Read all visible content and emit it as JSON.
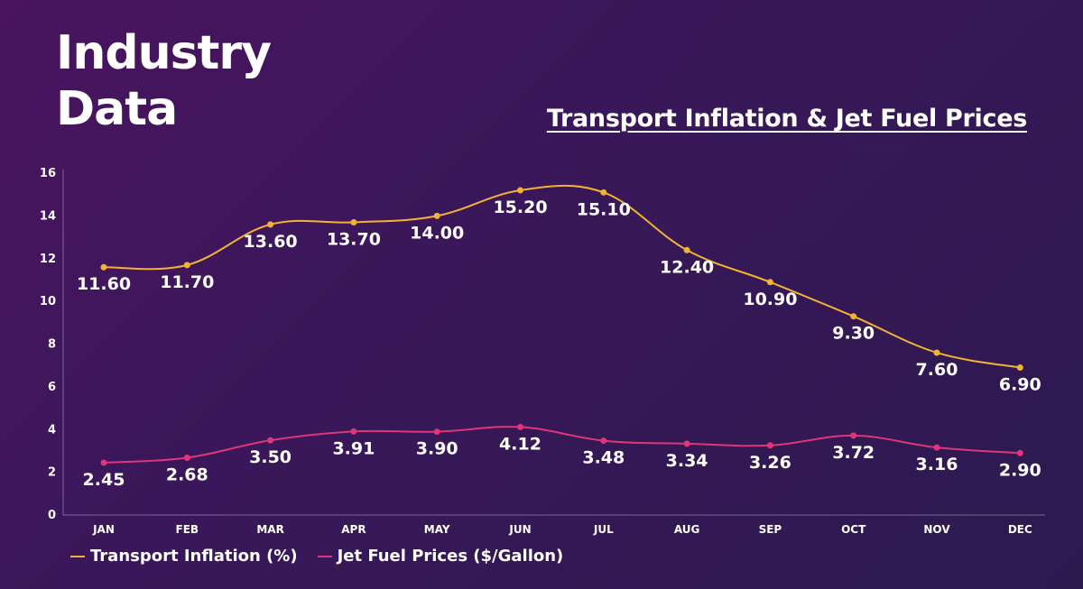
{
  "page": {
    "title": "Industry Data"
  },
  "chart_data": {
    "type": "line",
    "title": "Transport Inflation & Jet Fuel Prices",
    "categories": [
      "JAN",
      "FEB",
      "MAR",
      "APR",
      "MAY",
      "JUN",
      "JUL",
      "AUG",
      "SEP",
      "OCT",
      "NOV",
      "DEC"
    ],
    "ylim": [
      0,
      16
    ],
    "yticks": [
      0,
      2,
      4,
      6,
      8,
      10,
      12,
      14,
      16
    ],
    "xlabel": "",
    "ylabel": "",
    "grid": false,
    "legend_position": "bottom-left",
    "series": [
      {
        "name": "Transport Inflation (%)",
        "color": "#f2b233",
        "values": [
          11.6,
          11.7,
          13.6,
          13.7,
          14.0,
          15.2,
          15.1,
          12.4,
          10.9,
          9.3,
          7.6,
          6.9
        ],
        "labels": [
          "11.60",
          "11.70",
          "13.60",
          "13.70",
          "14.00",
          "15.20",
          "15.10",
          "12.40",
          "10.90",
          "9.30",
          "7.60",
          "6.90"
        ]
      },
      {
        "name": "Jet Fuel Prices ($/Gallon)",
        "color": "#e0357a",
        "values": [
          2.45,
          2.68,
          3.5,
          3.91,
          3.9,
          4.12,
          3.48,
          3.34,
          3.26,
          3.72,
          3.16,
          2.9
        ],
        "labels": [
          "2.45",
          "2.68",
          "3.50",
          "3.91",
          "3.90",
          "4.12",
          "3.48",
          "3.34",
          "3.26",
          "3.72",
          "3.16",
          "2.90"
        ]
      }
    ]
  }
}
